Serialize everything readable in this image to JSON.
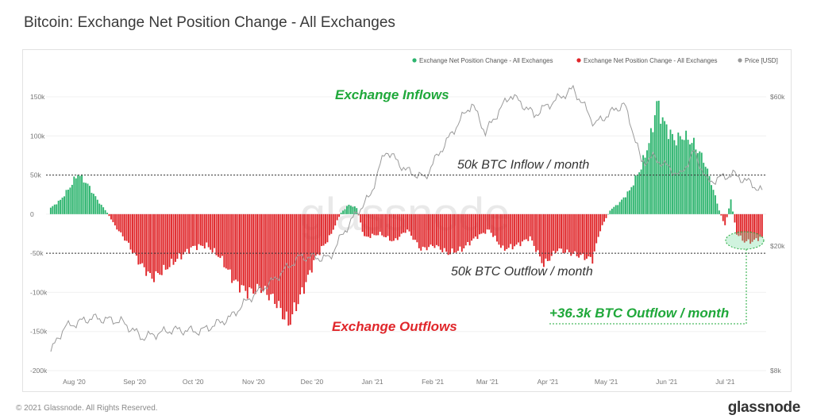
{
  "title": "Bitcoin: Exchange Net Position Change - All Exchanges",
  "footer": {
    "copyright": "© 2021 Glassnode. All Rights Reserved.",
    "brand": "glassnode"
  },
  "watermark": "glassnode",
  "colors": {
    "inflow": "#2db46e",
    "outflow": "#e0262a",
    "price": "#9a9a9a",
    "annotation_green": "#1fa83a",
    "annotation_red": "#e0262a"
  },
  "chart_data": {
    "type": "bar",
    "title": "Bitcoin: Exchange Net Position Change - All Exchanges",
    "legend": [
      {
        "name": "Exchange Net Position Change - All Exchanges",
        "color": "#2db46e"
      },
      {
        "name": "Exchange Net Position Change - All Exchanges",
        "color": "#e0262a"
      },
      {
        "name": "Price [USD]",
        "color": "#9a9a9a"
      }
    ],
    "legend_position": "top-right",
    "y_left": {
      "ticks": [
        "150k",
        "100k",
        "50k",
        "0",
        "-50k",
        "-100k",
        "-150k",
        "-200k"
      ],
      "values": [
        150000,
        100000,
        50000,
        0,
        -50000,
        -100000,
        -150000,
        -200000
      ],
      "range": [
        -200000,
        150000
      ]
    },
    "y_right": {
      "ticks": [
        "$60k",
        "$20k",
        "$8k"
      ],
      "values": [
        60000,
        20000,
        8000
      ],
      "scale": "log"
    },
    "x_ticks": [
      "Aug '20",
      "Sep '20",
      "Oct '20",
      "Nov '20",
      "Dec '20",
      "Jan '21",
      "Feb '21",
      "Mar '21",
      "Apr '21",
      "May '21",
      "Jun '21",
      "Jul '21"
    ],
    "x_range": [
      "2020-07-20",
      "2021-07-20"
    ],
    "net_position_change": [
      [
        "2020-07-20",
        8000
      ],
      [
        "2020-07-25",
        18000
      ],
      [
        "2020-07-30",
        35000
      ],
      [
        "2020-08-03",
        52000
      ],
      [
        "2020-08-08",
        38000
      ],
      [
        "2020-08-13",
        18000
      ],
      [
        "2020-08-18",
        2000
      ],
      [
        "2020-08-22",
        -15000
      ],
      [
        "2020-08-28",
        -35000
      ],
      [
        "2020-09-03",
        -60000
      ],
      [
        "2020-09-10",
        -82000
      ],
      [
        "2020-09-17",
        -70000
      ],
      [
        "2020-09-24",
        -55000
      ],
      [
        "2020-10-01",
        -42000
      ],
      [
        "2020-10-08",
        -40000
      ],
      [
        "2020-10-15",
        -55000
      ],
      [
        "2020-10-22",
        -85000
      ],
      [
        "2020-10-29",
        -100000
      ],
      [
        "2020-11-05",
        -95000
      ],
      [
        "2020-11-12",
        -110000
      ],
      [
        "2020-11-19",
        -140000
      ],
      [
        "2020-11-26",
        -100000
      ],
      [
        "2020-12-03",
        -55000
      ],
      [
        "2020-12-10",
        -30000
      ],
      [
        "2020-12-16",
        2000
      ],
      [
        "2020-12-20",
        12000
      ],
      [
        "2020-12-24",
        8000
      ],
      [
        "2020-12-28",
        -30000
      ],
      [
        "2021-01-05",
        -25000
      ],
      [
        "2021-01-12",
        -35000
      ],
      [
        "2021-01-19",
        -20000
      ],
      [
        "2021-01-26",
        -45000
      ],
      [
        "2021-02-02",
        -40000
      ],
      [
        "2021-02-09",
        -50000
      ],
      [
        "2021-02-16",
        -45000
      ],
      [
        "2021-02-23",
        -30000
      ],
      [
        "2021-03-02",
        -20000
      ],
      [
        "2021-03-09",
        -45000
      ],
      [
        "2021-03-16",
        -40000
      ],
      [
        "2021-03-23",
        -30000
      ],
      [
        "2021-03-30",
        -65000
      ],
      [
        "2021-04-06",
        -45000
      ],
      [
        "2021-04-13",
        -50000
      ],
      [
        "2021-04-20",
        -55000
      ],
      [
        "2021-04-24",
        -58000
      ],
      [
        "2021-04-28",
        -20000
      ],
      [
        "2021-05-03",
        5000
      ],
      [
        "2021-05-08",
        15000
      ],
      [
        "2021-05-13",
        30000
      ],
      [
        "2021-05-19",
        60000
      ],
      [
        "2021-05-24",
        100000
      ],
      [
        "2021-05-27",
        142000
      ],
      [
        "2021-05-31",
        115000
      ],
      [
        "2021-06-05",
        95000
      ],
      [
        "2021-06-10",
        100000
      ],
      [
        "2021-06-15",
        90000
      ],
      [
        "2021-06-20",
        70000
      ],
      [
        "2021-06-24",
        40000
      ],
      [
        "2021-06-28",
        5000
      ],
      [
        "2021-07-01",
        -15000
      ],
      [
        "2021-07-04",
        18000
      ],
      [
        "2021-07-07",
        -25000
      ],
      [
        "2021-07-11",
        -35000
      ],
      [
        "2021-07-15",
        -35000
      ],
      [
        "2021-07-19",
        -30000
      ]
    ],
    "price_usd": [
      [
        "2020-07-20",
        9200
      ],
      [
        "2020-07-27",
        11000
      ],
      [
        "2020-08-10",
        11800
      ],
      [
        "2020-08-25",
        11500
      ],
      [
        "2020-09-05",
        10200
      ],
      [
        "2020-09-20",
        10800
      ],
      [
        "2020-10-05",
        10700
      ],
      [
        "2020-10-20",
        11800
      ],
      [
        "2020-10-31",
        13800
      ],
      [
        "2020-11-10",
        15300
      ],
      [
        "2020-11-25",
        18500
      ],
      [
        "2020-12-10",
        18300
      ],
      [
        "2020-12-20",
        23500
      ],
      [
        "2020-12-31",
        29000
      ],
      [
        "2021-01-08",
        40500
      ],
      [
        "2021-01-18",
        35000
      ],
      [
        "2021-01-28",
        33000
      ],
      [
        "2021-02-10",
        45000
      ],
      [
        "2021-02-21",
        57000
      ],
      [
        "2021-02-28",
        46000
      ],
      [
        "2021-03-13",
        61000
      ],
      [
        "2021-03-25",
        52500
      ],
      [
        "2021-04-14",
        63500
      ],
      [
        "2021-04-25",
        49000
      ],
      [
        "2021-05-10",
        57000
      ],
      [
        "2021-05-19",
        37000
      ],
      [
        "2021-05-25",
        38500
      ],
      [
        "2021-06-08",
        33500
      ],
      [
        "2021-06-15",
        40000
      ],
      [
        "2021-06-22",
        32000
      ],
      [
        "2021-07-05",
        34000
      ],
      [
        "2021-07-15",
        31500
      ],
      [
        "2021-07-20",
        29800
      ]
    ],
    "reference_lines": [
      {
        "value": 50000,
        "label": "50k BTC Inflow / month"
      },
      {
        "value": -50000,
        "label": "50k BTC Outflow / month"
      }
    ],
    "annotations": [
      {
        "text": "Exchange Inflows",
        "color": "#1fa83a"
      },
      {
        "text": "Exchange Outflows",
        "color": "#e0262a"
      },
      {
        "text": "+36.3k BTC Outflow / month",
        "color": "#1fa83a"
      }
    ]
  }
}
